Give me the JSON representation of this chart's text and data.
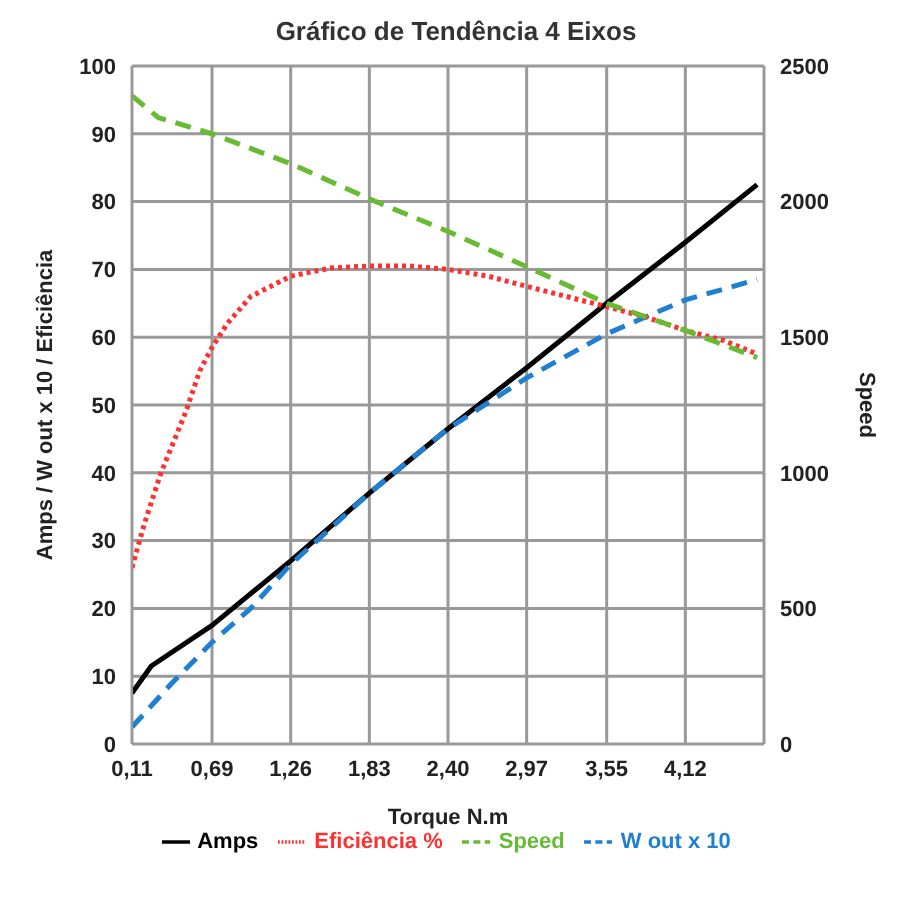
{
  "chart_data": {
    "type": "line",
    "title": "Gráfico de Tendência 4 Eixos",
    "xlabel": "Torque N.m",
    "ylabel": "Amps / W out x 10 / Eficiência",
    "y2label": "Speed",
    "xlim": [
      0.11,
      4.69
    ],
    "xticks": [
      {
        "value": 0.11,
        "label": "0,11"
      },
      {
        "value": 0.69,
        "label": "0,69"
      },
      {
        "value": 1.26,
        "label": "1,26"
      },
      {
        "value": 1.83,
        "label": "1,83"
      },
      {
        "value": 2.4,
        "label": "2,40"
      },
      {
        "value": 2.97,
        "label": "2,97"
      },
      {
        "value": 3.55,
        "label": "3,55"
      },
      {
        "value": 4.12,
        "label": "4,12"
      },
      {
        "value": 4.69,
        "label": null
      }
    ],
    "ylim": [
      0,
      100
    ],
    "yticks": [
      0,
      10,
      20,
      30,
      40,
      50,
      60,
      70,
      80,
      90,
      100
    ],
    "y2lim": [
      0,
      2500
    ],
    "y2ticks": [
      0,
      500,
      1000,
      1500,
      2000,
      2500
    ],
    "grid": true,
    "legend": "bottom",
    "marker": "none",
    "series": [
      {
        "name": "Amps",
        "color": "#000000",
        "line_style": "solid",
        "x": [
          0.11,
          0.25,
          0.69,
          1.26,
          1.83,
          2.4,
          2.97,
          3.55,
          4.12,
          4.64
        ],
        "values": [
          7.5,
          11.5,
          17.5,
          27,
          37,
          46.5,
          55.5,
          65,
          74,
          82.5
        ]
      },
      {
        "name": "W out x 10",
        "color": "#1f7fd0",
        "line_style": "dashed",
        "x": [
          0.11,
          0.4,
          0.69,
          0.97,
          1.26,
          1.83,
          2.4,
          2.97,
          3.55,
          4.12,
          4.64
        ],
        "values": [
          2.5,
          9,
          15,
          20,
          26.5,
          37,
          46.5,
          54,
          60.5,
          65.5,
          68.5
        ]
      },
      {
        "name": "Eficiência %",
        "color": "#ff3030",
        "line_style": "dotted",
        "x": [
          0.11,
          0.2,
          0.32,
          0.5,
          0.6,
          0.69,
          0.8,
          0.97,
          1.26,
          1.55,
          1.83,
          2.12,
          2.4,
          2.69,
          2.97,
          3.26,
          3.55,
          3.83,
          4.12,
          4.4,
          4.64
        ],
        "values": [
          26,
          32.5,
          40,
          49,
          55,
          58.5,
          62,
          66,
          69,
          70.2,
          70.5,
          70.5,
          70,
          69,
          67.5,
          66,
          64.5,
          63,
          61,
          59.5,
          57.5
        ]
      },
      {
        "name": "Speed",
        "color": "#66bb33",
        "line_style": "dashed",
        "axis": "y2",
        "x": [
          0.11,
          0.3,
          0.69,
          1.26,
          1.83,
          2.4,
          2.97,
          3.55,
          4.12,
          4.64
        ],
        "values": [
          2390,
          2310,
          2250,
          2140,
          2010,
          1890,
          1760,
          1625,
          1525,
          1425
        ]
      }
    ]
  }
}
